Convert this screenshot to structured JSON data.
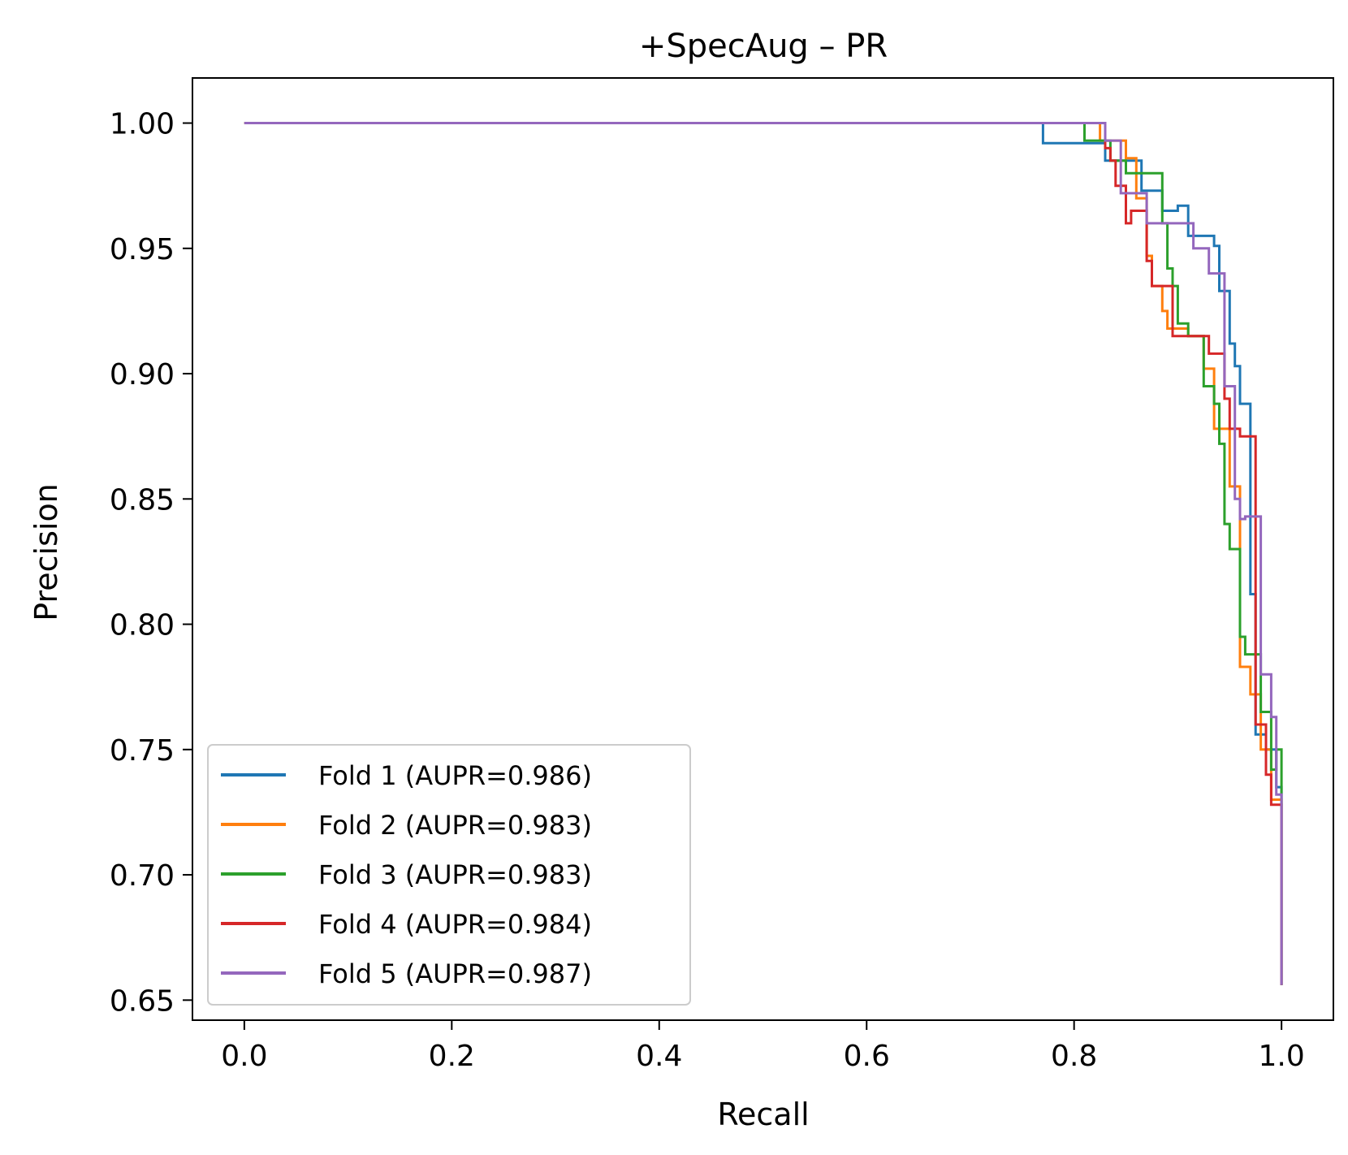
{
  "chart_data": {
    "type": "line",
    "title": "+SpecAug – PR",
    "xlabel": "Recall",
    "ylabel": "Precision",
    "xlim": [
      -0.05,
      1.05
    ],
    "ylim": [
      0.642,
      1.018
    ],
    "xticks": [
      "0.0",
      "0.2",
      "0.4",
      "0.6",
      "0.8",
      "1.0"
    ],
    "xtick_values": [
      0.0,
      0.2,
      0.4,
      0.6,
      0.8,
      1.0
    ],
    "yticks": [
      "0.65",
      "0.70",
      "0.75",
      "0.80",
      "0.85",
      "0.90",
      "0.95",
      "1.00"
    ],
    "ytick_values": [
      0.65,
      0.7,
      0.75,
      0.8,
      0.85,
      0.9,
      0.95,
      1.0
    ],
    "grid": false,
    "legend_position": "lower-left",
    "series": [
      {
        "name": "Fold 1 (AUPR=0.986)",
        "color": "#1f77b4",
        "points": [
          [
            0.0,
            1.0
          ],
          [
            0.77,
            1.0
          ],
          [
            0.77,
            0.992
          ],
          [
            0.83,
            0.992
          ],
          [
            0.83,
            0.985
          ],
          [
            0.865,
            0.985
          ],
          [
            0.865,
            0.973
          ],
          [
            0.885,
            0.973
          ],
          [
            0.885,
            0.965
          ],
          [
            0.9,
            0.965
          ],
          [
            0.9,
            0.967
          ],
          [
            0.91,
            0.967
          ],
          [
            0.91,
            0.955
          ],
          [
            0.935,
            0.955
          ],
          [
            0.935,
            0.951
          ],
          [
            0.94,
            0.951
          ],
          [
            0.94,
            0.933
          ],
          [
            0.95,
            0.933
          ],
          [
            0.95,
            0.912
          ],
          [
            0.955,
            0.912
          ],
          [
            0.955,
            0.903
          ],
          [
            0.96,
            0.903
          ],
          [
            0.96,
            0.888
          ],
          [
            0.97,
            0.888
          ],
          [
            0.97,
            0.812
          ],
          [
            0.975,
            0.812
          ],
          [
            0.975,
            0.756
          ],
          [
            0.985,
            0.756
          ],
          [
            0.985,
            0.75
          ],
          [
            0.995,
            0.75
          ],
          [
            0.995,
            0.735
          ],
          [
            1.0,
            0.735
          ],
          [
            1.0,
            0.656
          ]
        ]
      },
      {
        "name": "Fold 2 (AUPR=0.983)",
        "color": "#ff7f0e",
        "points": [
          [
            0.0,
            1.0
          ],
          [
            0.825,
            1.0
          ],
          [
            0.825,
            0.993
          ],
          [
            0.85,
            0.993
          ],
          [
            0.85,
            0.986
          ],
          [
            0.86,
            0.986
          ],
          [
            0.86,
            0.97
          ],
          [
            0.87,
            0.97
          ],
          [
            0.87,
            0.947
          ],
          [
            0.875,
            0.947
          ],
          [
            0.875,
            0.935
          ],
          [
            0.885,
            0.935
          ],
          [
            0.885,
            0.925
          ],
          [
            0.89,
            0.925
          ],
          [
            0.89,
            0.918
          ],
          [
            0.91,
            0.918
          ],
          [
            0.91,
            0.915
          ],
          [
            0.925,
            0.915
          ],
          [
            0.925,
            0.902
          ],
          [
            0.935,
            0.902
          ],
          [
            0.935,
            0.878
          ],
          [
            0.95,
            0.878
          ],
          [
            0.95,
            0.855
          ],
          [
            0.96,
            0.855
          ],
          [
            0.96,
            0.783
          ],
          [
            0.97,
            0.783
          ],
          [
            0.97,
            0.772
          ],
          [
            0.98,
            0.772
          ],
          [
            0.98,
            0.75
          ],
          [
            0.99,
            0.75
          ],
          [
            0.99,
            0.73
          ],
          [
            1.0,
            0.73
          ],
          [
            1.0,
            0.656
          ]
        ]
      },
      {
        "name": "Fold 3 (AUPR=0.983)",
        "color": "#2ca02c",
        "points": [
          [
            0.0,
            1.0
          ],
          [
            0.81,
            1.0
          ],
          [
            0.81,
            0.993
          ],
          [
            0.835,
            0.993
          ],
          [
            0.835,
            0.985
          ],
          [
            0.85,
            0.985
          ],
          [
            0.85,
            0.98
          ],
          [
            0.885,
            0.98
          ],
          [
            0.885,
            0.96
          ],
          [
            0.89,
            0.96
          ],
          [
            0.89,
            0.942
          ],
          [
            0.895,
            0.942
          ],
          [
            0.895,
            0.935
          ],
          [
            0.9,
            0.935
          ],
          [
            0.9,
            0.92
          ],
          [
            0.91,
            0.92
          ],
          [
            0.91,
            0.915
          ],
          [
            0.925,
            0.915
          ],
          [
            0.925,
            0.895
          ],
          [
            0.935,
            0.895
          ],
          [
            0.935,
            0.888
          ],
          [
            0.94,
            0.888
          ],
          [
            0.94,
            0.872
          ],
          [
            0.945,
            0.872
          ],
          [
            0.945,
            0.84
          ],
          [
            0.95,
            0.84
          ],
          [
            0.95,
            0.83
          ],
          [
            0.96,
            0.83
          ],
          [
            0.96,
            0.795
          ],
          [
            0.965,
            0.795
          ],
          [
            0.965,
            0.788
          ],
          [
            0.98,
            0.788
          ],
          [
            0.98,
            0.765
          ],
          [
            0.99,
            0.765
          ],
          [
            0.99,
            0.742
          ],
          [
            0.995,
            0.742
          ],
          [
            0.995,
            0.75
          ],
          [
            1.0,
            0.75
          ],
          [
            1.0,
            0.656
          ]
        ]
      },
      {
        "name": "Fold 4 (AUPR=0.984)",
        "color": "#d62728",
        "points": [
          [
            0.0,
            1.0
          ],
          [
            0.83,
            1.0
          ],
          [
            0.83,
            0.99
          ],
          [
            0.835,
            0.99
          ],
          [
            0.835,
            0.985
          ],
          [
            0.84,
            0.985
          ],
          [
            0.84,
            0.975
          ],
          [
            0.85,
            0.975
          ],
          [
            0.85,
            0.96
          ],
          [
            0.855,
            0.96
          ],
          [
            0.855,
            0.965
          ],
          [
            0.87,
            0.965
          ],
          [
            0.87,
            0.945
          ],
          [
            0.875,
            0.945
          ],
          [
            0.875,
            0.935
          ],
          [
            0.895,
            0.935
          ],
          [
            0.895,
            0.915
          ],
          [
            0.93,
            0.915
          ],
          [
            0.93,
            0.908
          ],
          [
            0.945,
            0.908
          ],
          [
            0.945,
            0.89
          ],
          [
            0.95,
            0.89
          ],
          [
            0.95,
            0.878
          ],
          [
            0.96,
            0.878
          ],
          [
            0.96,
            0.875
          ],
          [
            0.975,
            0.875
          ],
          [
            0.975,
            0.76
          ],
          [
            0.985,
            0.76
          ],
          [
            0.985,
            0.74
          ],
          [
            0.99,
            0.74
          ],
          [
            0.99,
            0.728
          ],
          [
            1.0,
            0.728
          ],
          [
            1.0,
            0.656
          ]
        ]
      },
      {
        "name": "Fold 5 (AUPR=0.987)",
        "color": "#9467bd",
        "points": [
          [
            0.0,
            1.0
          ],
          [
            0.83,
            1.0
          ],
          [
            0.83,
            0.993
          ],
          [
            0.845,
            0.993
          ],
          [
            0.845,
            0.972
          ],
          [
            0.87,
            0.972
          ],
          [
            0.87,
            0.96
          ],
          [
            0.915,
            0.96
          ],
          [
            0.915,
            0.95
          ],
          [
            0.93,
            0.95
          ],
          [
            0.93,
            0.94
          ],
          [
            0.945,
            0.94
          ],
          [
            0.945,
            0.895
          ],
          [
            0.955,
            0.895
          ],
          [
            0.955,
            0.85
          ],
          [
            0.96,
            0.85
          ],
          [
            0.96,
            0.842
          ],
          [
            0.965,
            0.842
          ],
          [
            0.965,
            0.843
          ],
          [
            0.98,
            0.843
          ],
          [
            0.98,
            0.78
          ],
          [
            0.99,
            0.78
          ],
          [
            0.99,
            0.763
          ],
          [
            0.995,
            0.763
          ],
          [
            0.995,
            0.732
          ],
          [
            1.0,
            0.732
          ],
          [
            1.0,
            0.656
          ]
        ]
      }
    ]
  }
}
